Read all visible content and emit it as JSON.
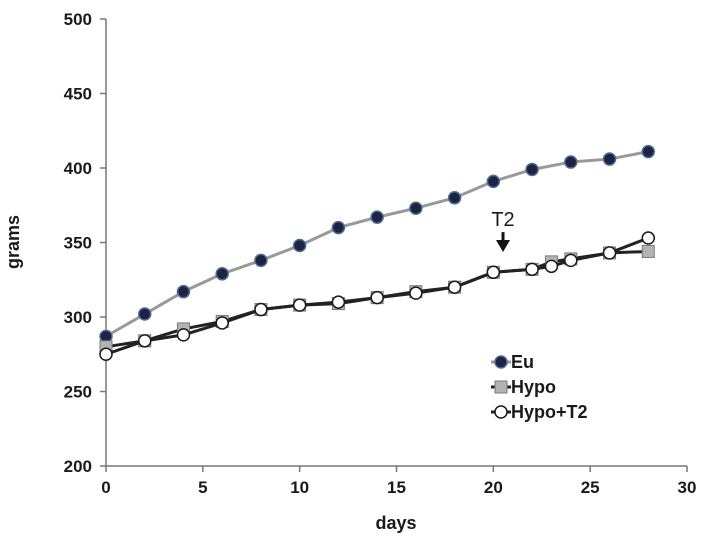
{
  "chart_data": {
    "type": "line",
    "xlabel": "days",
    "ylabel": "grams",
    "xlim": [
      0,
      30
    ],
    "ylim": [
      200,
      500
    ],
    "x_ticks": [
      0,
      5,
      10,
      15,
      20,
      25,
      30
    ],
    "y_ticks": [
      200,
      250,
      300,
      350,
      400,
      450,
      500
    ],
    "grid": false,
    "legend_position": "right",
    "series": [
      {
        "name": "Eu",
        "marker": "filled-circle",
        "line_color": "#999999",
        "marker_color": "#1f2340",
        "x": [
          0,
          2,
          4,
          6,
          8,
          10,
          12,
          14,
          16,
          18,
          20,
          22,
          24,
          26,
          28
        ],
        "y": [
          287,
          302,
          317,
          329,
          338,
          348,
          360,
          367,
          373,
          380,
          391,
          399,
          404,
          406,
          411
        ]
      },
      {
        "name": "Hypo",
        "marker": "gray-square",
        "line_color": "#222222",
        "marker_color": "#b3b3b3",
        "x": [
          0,
          2,
          4,
          6,
          8,
          10,
          12,
          14,
          16,
          18,
          20,
          22,
          23,
          24,
          26,
          28
        ],
        "y": [
          280,
          284,
          292,
          297,
          305,
          308,
          309,
          313,
          317,
          320,
          330,
          332,
          337,
          339,
          343,
          344
        ]
      },
      {
        "name": "Hypo+T2",
        "marker": "open-circle",
        "line_color": "#222222",
        "marker_color": "#ffffff",
        "x": [
          0,
          2,
          4,
          6,
          8,
          10,
          12,
          14,
          16,
          18,
          20,
          22,
          23,
          24,
          26,
          28
        ],
        "y": [
          275,
          284,
          288,
          296,
          305,
          308,
          310,
          313,
          316,
          320,
          330,
          332,
          334,
          338,
          343,
          353
        ]
      }
    ],
    "annotations": [
      {
        "text": "T2",
        "x": 20.5,
        "y": 361,
        "arrow_to_y": 349
      }
    ]
  }
}
